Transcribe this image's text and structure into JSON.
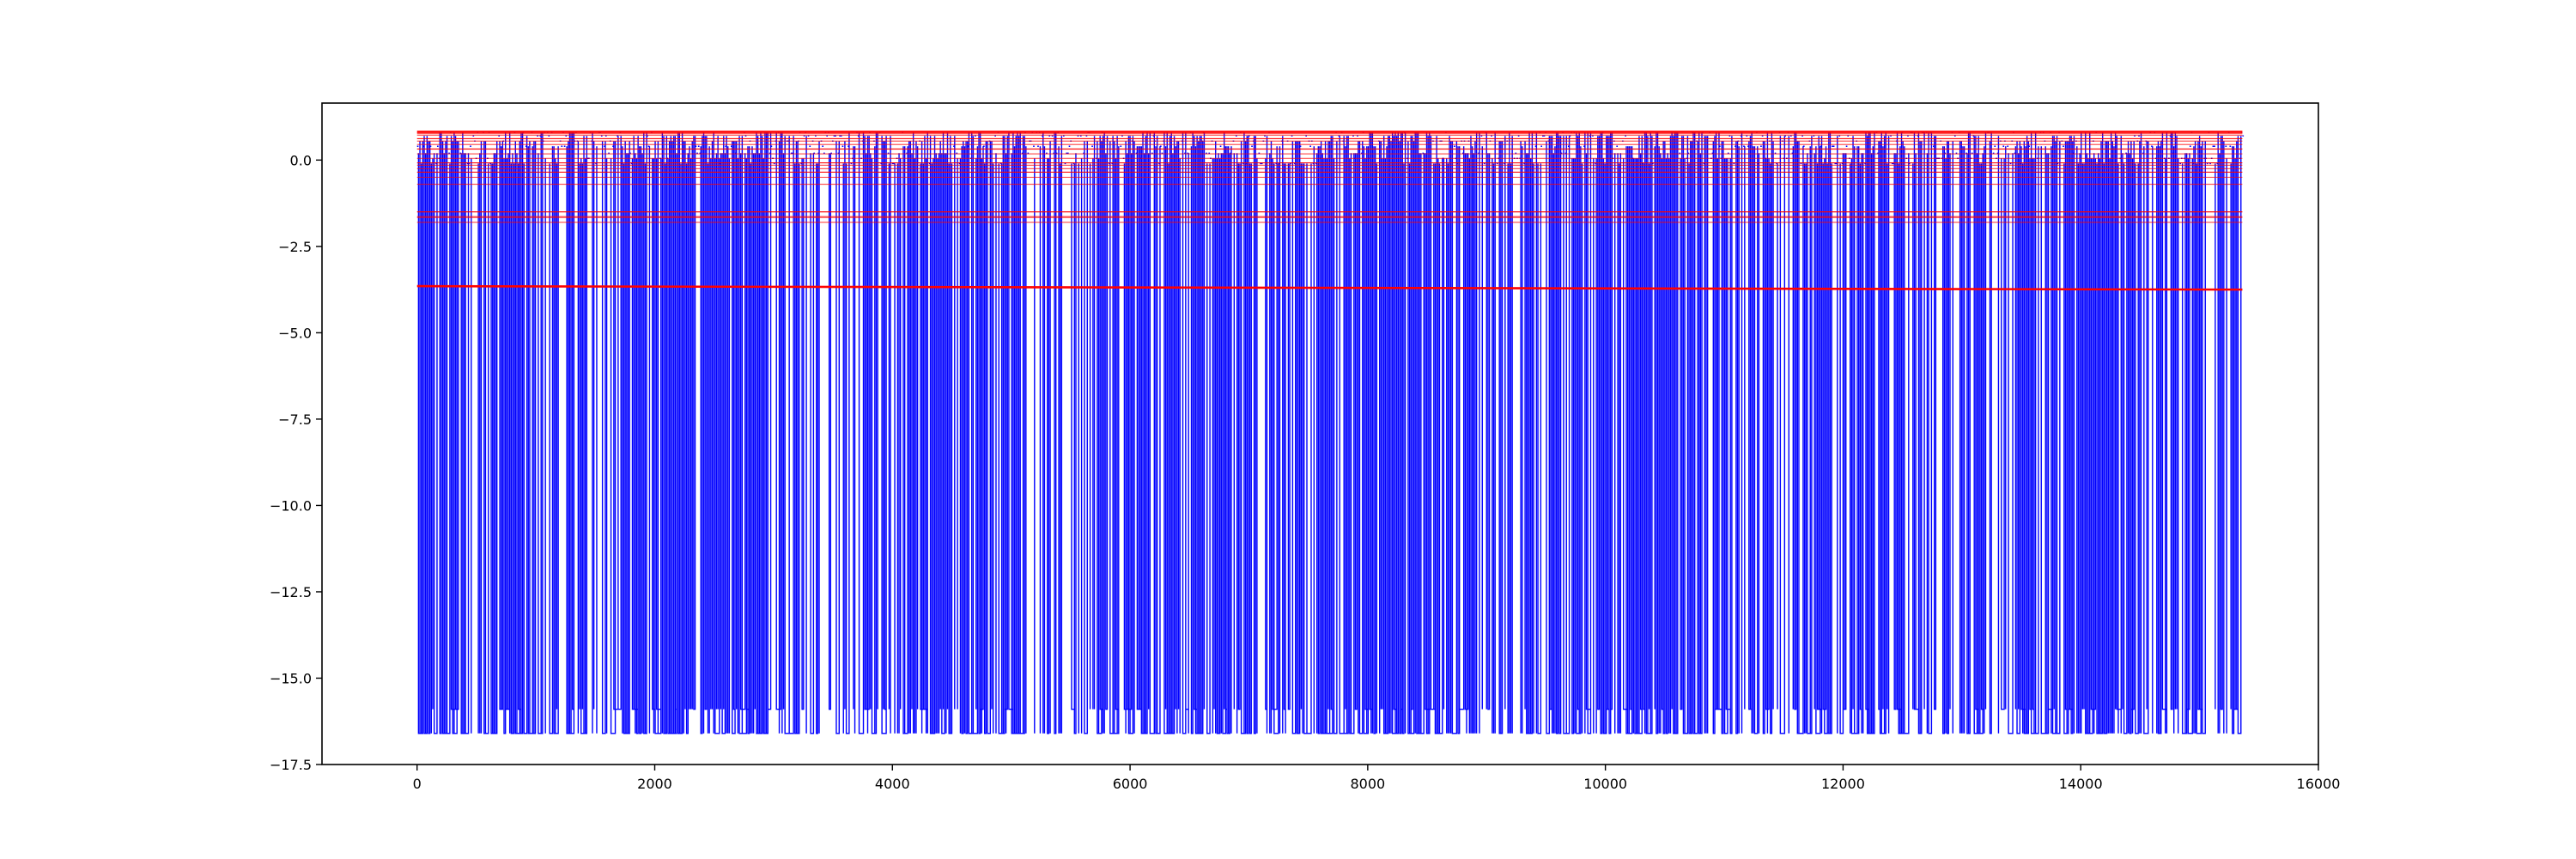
{
  "chart_data": {
    "type": "line",
    "title": "",
    "xlabel": "",
    "ylabel": "",
    "xlim": [
      -800,
      16000
    ],
    "ylim": [
      -17.5,
      1.65
    ],
    "grid": false,
    "legend": "none",
    "x_ticks": [
      0,
      2000,
      4000,
      6000,
      8000,
      10000,
      12000,
      14000,
      16000
    ],
    "x_tick_labels": [
      "0",
      "2000",
      "4000",
      "6000",
      "8000",
      "10000",
      "12000",
      "14000",
      "16000"
    ],
    "y_ticks": [
      0.0,
      -2.5,
      -5.0,
      -7.5,
      -10.0,
      -12.5,
      -15.0,
      -17.5
    ],
    "y_tick_labels": [
      "0.0",
      "−2.5",
      "−5.0",
      "−7.5",
      "−10.0",
      "−12.5",
      "−15.0",
      "−17.5"
    ],
    "series": [
      {
        "color": "#0000ff",
        "x_range": [
          0,
          15360
        ],
        "upper_values": [
          0.8,
          0.7,
          0.55,
          0.4,
          0.2,
          0.05,
          -0.1
        ],
        "lower_values": [
          -15.9,
          -16.6
        ],
        "spike_density": 0.62
      },
      {
        "color": "#ff0000",
        "x_range": [
          0,
          15360
        ],
        "level_values": [
          0.82,
          0.78,
          0.72,
          0.62,
          0.55,
          0.45,
          0.32,
          0.18,
          0.05,
          -0.08,
          -0.15,
          -0.25,
          -0.35,
          -0.5,
          -0.7,
          -1.5,
          -1.65,
          -1.8
        ],
        "drifting_line": {
          "start": -3.65,
          "end": -3.75
        }
      }
    ]
  }
}
